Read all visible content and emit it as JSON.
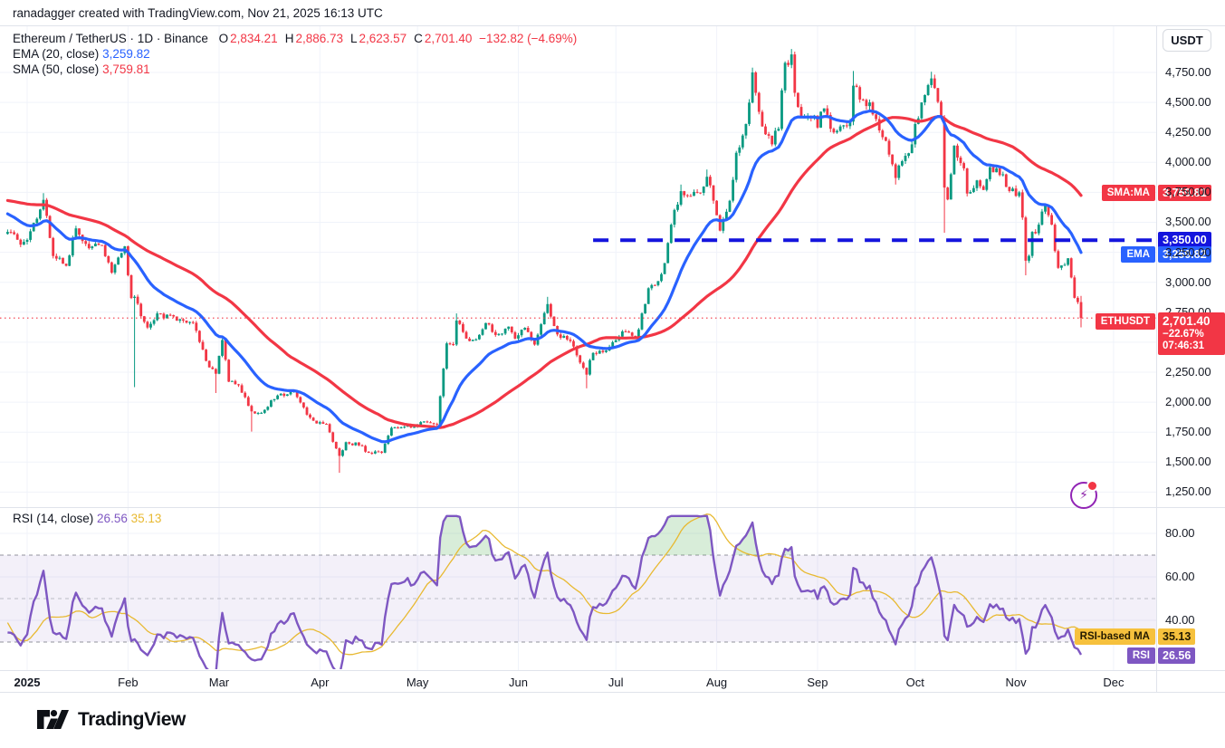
{
  "header": {
    "attribution": "ranadagger created with TradingView.com, Nov 21, 2025 16:13 UTC"
  },
  "currency_button": "USDT",
  "legend": {
    "title": "Ethereum / TetherUS · 1D · Binance",
    "ohlc": [
      {
        "k": "O",
        "v": "2,834.21"
      },
      {
        "k": "H",
        "v": "2,886.73"
      },
      {
        "k": "L",
        "v": "2,623.57"
      },
      {
        "k": "C",
        "v": "2,701.40"
      }
    ],
    "change": "−132.82 (−4.69%)",
    "ema_label": "EMA (20, close)",
    "ema_value": "3,259.82",
    "sma_label": "SMA (50, close)",
    "sma_value": "3,759.81"
  },
  "rsi_legend": {
    "label": "RSI (14, close)",
    "rsi_value": "26.56",
    "ma_value": "35.13"
  },
  "tags": {
    "sma": {
      "name": "SMA:MA",
      "value": "3,759.81"
    },
    "line3350": {
      "value": "3,350.00"
    },
    "ema": {
      "name": "EMA",
      "value": "3,259.82"
    },
    "ethusdt": {
      "name": "ETHUSDT",
      "price": "2,701.40",
      "change_pct": "−22.67%",
      "countdown": "07:46:31"
    },
    "rsi_ma": {
      "name": "RSI-based MA",
      "value": "35.13"
    },
    "rsi": {
      "name": "RSI",
      "value": "26.56"
    }
  },
  "logo": {
    "text": "TradingView"
  },
  "chart_data": {
    "type": "candlestick",
    "symbol": "Ethereum / TetherUS",
    "ticker": "ETHUSDT",
    "exchange": "Binance",
    "timeframe": "1D",
    "last_bar": {
      "open": 2834.21,
      "high": 2886.73,
      "low": 2623.57,
      "close": 2701.4,
      "change": -132.82,
      "change_pct": -4.69
    },
    "indicators": {
      "ema20": 3259.82,
      "sma50": 3759.81,
      "rsi14": 26.56,
      "rsi_ma14": 35.13
    },
    "levels": {
      "blue_dashed_resistance": 3350.0,
      "last_price_line": 2701.4,
      "blue_dashed_color": "#1414dd",
      "last_price_color": "#f23645"
    },
    "colors": {
      "up": "#089981",
      "down": "#f23645",
      "ema": "#2962ff",
      "sma": "#f23645",
      "rsi": "#7e57c2",
      "rsi_ma": "#e8b931",
      "grid": "#f0f3fa",
      "border": "#e0e3eb",
      "rsi_band_fill": "rgba(126,87,194,0.09)",
      "rsi_over_fill": "rgba(76,175,80,0.22)"
    },
    "price_axis": {
      "currency": "USDT",
      "ticks": [
        {
          "v": 4750,
          "label": "4,750.00"
        },
        {
          "v": 4500,
          "label": "4,500.00"
        },
        {
          "v": 4250,
          "label": "4,250.00"
        },
        {
          "v": 4000,
          "label": "4,000.00"
        },
        {
          "v": 3750,
          "label": "3,750.00"
        },
        {
          "v": 3500,
          "label": "3,500.00"
        },
        {
          "v": 3250,
          "label": "3,250.00"
        },
        {
          "v": 3000,
          "label": "3,000.00"
        },
        {
          "v": 2750,
          "label": "2,750.00"
        },
        {
          "v": 2500,
          "label": "2,500.00"
        },
        {
          "v": 2250,
          "label": "2,250.00"
        },
        {
          "v": 2000,
          "label": "2,000.00"
        },
        {
          "v": 1750,
          "label": "1,750.00"
        },
        {
          "v": 1500,
          "label": "1,500.00"
        },
        {
          "v": 1250,
          "label": "1,250.00"
        }
      ]
    },
    "rsi_axis": {
      "ticks": [
        {
          "v": 80,
          "label": "80.00"
        },
        {
          "v": 60,
          "label": "60.00"
        },
        {
          "v": 40,
          "label": "40.00"
        }
      ],
      "band_levels": [
        70,
        50,
        30
      ]
    },
    "x_axis": {
      "months": [
        {
          "label": "2025",
          "day": 0,
          "bold": true
        },
        {
          "label": "Feb",
          "day": 31
        },
        {
          "label": "Mar",
          "day": 59
        },
        {
          "label": "Apr",
          "day": 90
        },
        {
          "label": "May",
          "day": 120
        },
        {
          "label": "Jun",
          "day": 151
        },
        {
          "label": "Jul",
          "day": 181
        },
        {
          "label": "Aug",
          "day": 212
        },
        {
          "label": "Sep",
          "day": 243
        },
        {
          "label": "Oct",
          "day": 273
        },
        {
          "label": "Nov",
          "day": 304
        },
        {
          "label": "Dec",
          "day": 334
        }
      ]
    },
    "blue_line_start_day": 174,
    "price_anchors": [
      [
        -56,
        3640,
        0,
        0
      ],
      [
        -48,
        3560,
        0,
        0
      ],
      [
        -40,
        3840,
        0,
        0
      ],
      [
        -30,
        3620,
        0,
        0
      ],
      [
        -24,
        3900,
        0,
        0
      ],
      [
        -18,
        3960,
        0,
        0
      ],
      [
        -12,
        3330,
        0,
        0
      ],
      [
        -9,
        3410,
        0,
        0
      ],
      [
        -6,
        3420,
        0,
        0
      ],
      [
        -3,
        3355,
        0,
        0
      ],
      [
        -1,
        3337,
        0,
        0
      ],
      [
        0,
        3353,
        0,
        0
      ],
      [
        5,
        3687,
        0,
        3744
      ],
      [
        8,
        3219,
        0,
        0
      ],
      [
        12,
        3137,
        0,
        0
      ],
      [
        15,
        3449,
        0,
        0
      ],
      [
        19,
        3284,
        0,
        0
      ],
      [
        23,
        3310,
        0,
        0
      ],
      [
        26,
        3080,
        0,
        0
      ],
      [
        30,
        3300,
        0,
        0
      ],
      [
        32,
        2869,
        0,
        0
      ],
      [
        33,
        2879,
        2125,
        0
      ],
      [
        37,
        2622,
        0,
        0
      ],
      [
        40,
        2740,
        0,
        0
      ],
      [
        44,
        2726,
        0,
        0
      ],
      [
        48,
        2680,
        0,
        0
      ],
      [
        51,
        2662,
        0,
        0
      ],
      [
        55,
        2344,
        0,
        0
      ],
      [
        58,
        2237,
        2076,
        0
      ],
      [
        60,
        2518,
        0,
        0
      ],
      [
        62,
        2171,
        0,
        0
      ],
      [
        65,
        2141,
        0,
        0
      ],
      [
        69,
        1923,
        1754,
        0
      ],
      [
        72,
        1911,
        0,
        0
      ],
      [
        77,
        2056,
        0,
        0
      ],
      [
        82,
        2093,
        0,
        0
      ],
      [
        86,
        1896,
        0,
        0
      ],
      [
        89,
        1822,
        0,
        0
      ],
      [
        92,
        1817,
        0,
        0
      ],
      [
        96,
        1552,
        1411,
        0
      ],
      [
        98,
        1666,
        0,
        0
      ],
      [
        103,
        1635,
        0,
        0
      ],
      [
        105,
        1577,
        0,
        0
      ],
      [
        109,
        1578,
        0,
        0
      ],
      [
        112,
        1785,
        0,
        0
      ],
      [
        116,
        1795,
        0,
        0
      ],
      [
        119,
        1793,
        0,
        0
      ],
      [
        122,
        1839,
        0,
        0
      ],
      [
        126,
        1810,
        0,
        0
      ],
      [
        127,
        2050,
        0,
        0
      ],
      [
        129,
        2490,
        0,
        0
      ],
      [
        131,
        2480,
        0,
        0
      ],
      [
        132,
        2680,
        0,
        2740
      ],
      [
        135,
        2530,
        0,
        0
      ],
      [
        138,
        2524,
        0,
        0
      ],
      [
        141,
        2660,
        0,
        0
      ],
      [
        144,
        2560,
        0,
        0
      ],
      [
        148,
        2630,
        0,
        0
      ],
      [
        150,
        2530,
        0,
        0
      ],
      [
        153,
        2620,
        0,
        0
      ],
      [
        156,
        2480,
        0,
        0
      ],
      [
        160,
        2818,
        0,
        2878
      ],
      [
        163,
        2565,
        0,
        0
      ],
      [
        167,
        2510,
        0,
        0
      ],
      [
        172,
        2230,
        2115,
        0
      ],
      [
        174,
        2410,
        0,
        0
      ],
      [
        178,
        2430,
        0,
        0
      ],
      [
        180,
        2500,
        0,
        0
      ],
      [
        183,
        2590,
        0,
        0
      ],
      [
        187,
        2540,
        0,
        0
      ],
      [
        189,
        2740,
        0,
        0
      ],
      [
        191,
        2950,
        0,
        0
      ],
      [
        194,
        3010,
        0,
        0
      ],
      [
        196,
        3160,
        0,
        0
      ],
      [
        198,
        3480,
        0,
        0
      ],
      [
        201,
        3760,
        0,
        3815
      ],
      [
        204,
        3720,
        0,
        0
      ],
      [
        207,
        3745,
        0,
        0
      ],
      [
        209,
        3880,
        0,
        3940
      ],
      [
        211,
        3680,
        0,
        0
      ],
      [
        213,
        3430,
        0,
        0
      ],
      [
        216,
        3680,
        0,
        0
      ],
      [
        218,
        4080,
        0,
        0
      ],
      [
        221,
        4320,
        0,
        0
      ],
      [
        223,
        4750,
        0,
        4790
      ],
      [
        224,
        4580,
        0,
        0
      ],
      [
        226,
        4300,
        0,
        0
      ],
      [
        229,
        4150,
        0,
        0
      ],
      [
        231,
        4280,
        0,
        0
      ],
      [
        233,
        4830,
        0,
        0
      ],
      [
        235,
        4900,
        0,
        4946
      ],
      [
        236,
        4580,
        0,
        0
      ],
      [
        238,
        4370,
        0,
        0
      ],
      [
        241,
        4370,
        0,
        0
      ],
      [
        242,
        4390,
        0,
        0
      ],
      [
        243,
        4290,
        0,
        0
      ],
      [
        245,
        4450,
        0,
        0
      ],
      [
        247,
        4280,
        0,
        0
      ],
      [
        250,
        4300,
        0,
        0
      ],
      [
        253,
        4340,
        0,
        0
      ],
      [
        254,
        4640,
        0,
        4762
      ],
      [
        257,
        4520,
        0,
        0
      ],
      [
        259,
        4500,
        0,
        0
      ],
      [
        263,
        4210,
        0,
        0
      ],
      [
        264,
        4180,
        0,
        0
      ],
      [
        267,
        3870,
        3815,
        0
      ],
      [
        269,
        4010,
        0,
        0
      ],
      [
        272,
        4150,
        0,
        0
      ],
      [
        273,
        4320,
        0,
        0
      ],
      [
        275,
        4500,
        0,
        0
      ],
      [
        278,
        4700,
        0,
        4756
      ],
      [
        279,
        4620,
        0,
        0
      ],
      [
        281,
        4370,
        0,
        0
      ],
      [
        282,
        3790,
        3413,
        0
      ],
      [
        283,
        3690,
        0,
        0
      ],
      [
        285,
        4140,
        0,
        0
      ],
      [
        286,
        4040,
        0,
        0
      ],
      [
        288,
        3950,
        0,
        0
      ],
      [
        289,
        3740,
        0,
        0
      ],
      [
        292,
        3850,
        0,
        0
      ],
      [
        294,
        3770,
        0,
        0
      ],
      [
        296,
        3960,
        0,
        0
      ],
      [
        298,
        3950,
        0,
        0
      ],
      [
        300,
        3900,
        0,
        0
      ],
      [
        302,
        3760,
        0,
        0
      ],
      [
        304,
        3720,
        0,
        0
      ],
      [
        305,
        3750,
        0,
        0
      ],
      [
        306,
        3540,
        0,
        0
      ],
      [
        307,
        3180,
        3058,
        0
      ],
      [
        308,
        3220,
        0,
        0
      ],
      [
        309,
        3420,
        0,
        0
      ],
      [
        311,
        3480,
        0,
        0
      ],
      [
        313,
        3640,
        0,
        0
      ],
      [
        314,
        3560,
        0,
        0
      ],
      [
        315,
        3480,
        0,
        0
      ],
      [
        316,
        3260,
        0,
        0
      ],
      [
        317,
        3120,
        0,
        0
      ],
      [
        318,
        3140,
        0,
        0
      ],
      [
        320,
        3200,
        0,
        0
      ],
      [
        321,
        3040,
        0,
        0
      ],
      [
        322,
        2870,
        0,
        0
      ],
      [
        323,
        2834.21,
        0,
        0
      ],
      [
        324,
        2701.4,
        0,
        0
      ]
    ]
  }
}
